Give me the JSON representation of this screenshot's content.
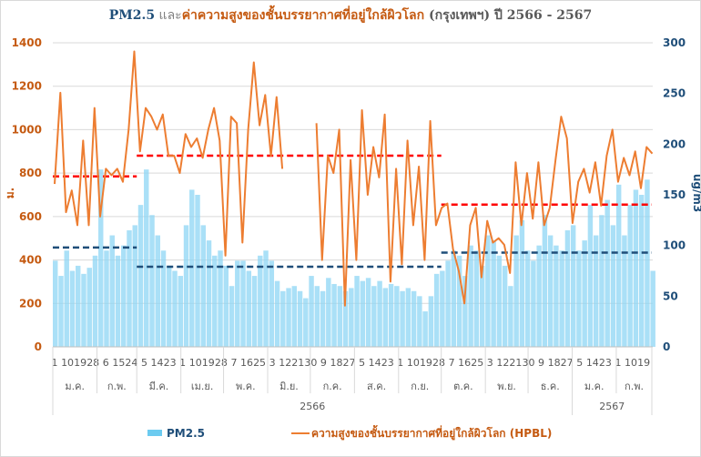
{
  "chart_data": {
    "type": "bar+line",
    "title": {
      "part1": "PM2.5",
      "part2": " และ",
      "part3": "ค่าความสูงของชั้นบรรยากาศที่อยู่ใกล้ผิวโลก",
      "part4": " (กรุงเทพฯ) ปี 2566 - 2567"
    },
    "colors": {
      "pm25": "#8ed6f4",
      "hpbl": "#ED7D31",
      "hpbl_avg": "#FF0000",
      "pm25_avg": "#1F4E79",
      "left_axis": "#C55A11",
      "right_axis": "#1F4E79",
      "grid": "#d9d9d9"
    },
    "ylabel_left": "ม.",
    "ylabel_right": "ug/m3",
    "ylim_left": [
      0,
      1400
    ],
    "ylim_right": [
      0,
      300
    ],
    "yticks_left": [
      "0",
      "200",
      "400",
      "600",
      "800",
      "1000",
      "1200",
      "1400"
    ],
    "yticks_right": [
      "0",
      "50",
      "100",
      "150",
      "200",
      "250",
      "300"
    ],
    "x_step_days": 4,
    "x_tick_labels": [
      "1",
      "10",
      "19",
      "28",
      "6",
      "15",
      "24",
      "5",
      "14",
      "23",
      "1",
      "10",
      "19",
      "28",
      "7",
      "16",
      "25",
      "3",
      "12",
      "21",
      "30",
      "9",
      "18",
      "27",
      "5",
      "14",
      "23",
      "1",
      "10",
      "19",
      "28",
      "7",
      "16",
      "25",
      "3",
      "12",
      "21",
      "30",
      "9",
      "18",
      "27",
      "5",
      "14",
      "23",
      "1",
      "10",
      "19"
    ],
    "months": [
      "ม.ค.",
      "ก.พ.",
      "มี.ค.",
      "เม.ย.",
      "พ.ค.",
      "มิ.ย.",
      "ก.ค.",
      "ส.ค.",
      "ก.ย.",
      "ต.ค.",
      "พ.ย.",
      "ธ.ค.",
      "ม.ค.",
      "ก.พ."
    ],
    "years": [
      "2566",
      "2567"
    ],
    "grid": true,
    "legend": {
      "position": "bottom",
      "pm25": "PM2.5",
      "hpbl": "ความสูงของชั้นบรรยากาศที่อยู่ใกล้ผิวโลก (HPBL)"
    },
    "series": [
      {
        "name": "PM2.5",
        "axis": "right",
        "kind": "bar",
        "values": [
          85,
          70,
          95,
          75,
          80,
          72,
          78,
          90,
          175,
          95,
          110,
          90,
          100,
          115,
          120,
          140,
          175,
          130,
          110,
          95,
          80,
          75,
          70,
          120,
          155,
          150,
          120,
          105,
          90,
          95,
          80,
          60,
          85,
          85,
          75,
          70,
          90,
          95,
          85,
          65,
          55,
          58,
          60,
          55,
          48,
          70,
          60,
          55,
          68,
          62,
          60,
          55,
          58,
          70,
          65,
          68,
          60,
          65,
          58,
          62,
          60,
          55,
          58,
          55,
          50,
          35,
          50,
          72,
          75,
          85,
          95,
          90,
          70,
          100,
          95,
          80,
          110,
          105,
          90,
          80,
          60,
          110,
          125,
          95,
          85,
          100,
          130,
          110,
          100,
          95,
          115,
          120,
          95,
          105,
          140,
          110,
          130,
          145,
          120,
          160,
          110,
          140,
          155,
          150,
          165,
          75
        ]
      },
      {
        "name": "ความสูงของชั้นบรรยากาศที่อยู่ใกล้ผิวโลก (HPBL)",
        "axis": "left",
        "kind": "line",
        "values": [
          750,
          1170,
          620,
          720,
          560,
          950,
          560,
          1100,
          600,
          820,
          790,
          820,
          760,
          1000,
          1360,
          900,
          1100,
          1060,
          1000,
          1070,
          880,
          880,
          800,
          980,
          920,
          960,
          870,
          1000,
          1100,
          950,
          420,
          1060,
          1030,
          480,
          1000,
          1310,
          1020,
          1160,
          880,
          1150,
          820,
          null,
          null,
          null,
          null,
          null,
          1030,
          400,
          880,
          800,
          1000,
          190,
          860,
          400,
          1090,
          700,
          920,
          780,
          1070,
          300,
          820,
          380,
          950,
          560,
          830,
          400,
          1040,
          560,
          640,
          660,
          450,
          350,
          200,
          560,
          640,
          320,
          580,
          480,
          500,
          470,
          340,
          850,
          560,
          800,
          590,
          850,
          560,
          640,
          860,
          1060,
          960,
          570,
          760,
          820,
          710,
          850,
          650,
          880,
          1000,
          760,
          870,
          790,
          900,
          730,
          920,
          890
        ]
      }
    ],
    "averages": [
      {
        "series": "HPBL",
        "period": "ม.ค.-ก.พ. 2566",
        "value": 785
      },
      {
        "series": "HPBL",
        "period": "มี.ค.-ก.ย. 2566",
        "value": 880
      },
      {
        "series": "HPBL",
        "period": "ต.ค. 2566-ก.พ. 2567",
        "value": 655
      },
      {
        "series": "PM2.5",
        "period": "ม.ค.-ก.พ. 2566",
        "value": 98
      },
      {
        "series": "PM2.5",
        "period": "มี.ค.-ก.ย. 2566",
        "value": 79
      },
      {
        "series": "PM2.5",
        "period": "ต.ค. 2566-ก.พ. 2567",
        "value": 93
      }
    ]
  }
}
